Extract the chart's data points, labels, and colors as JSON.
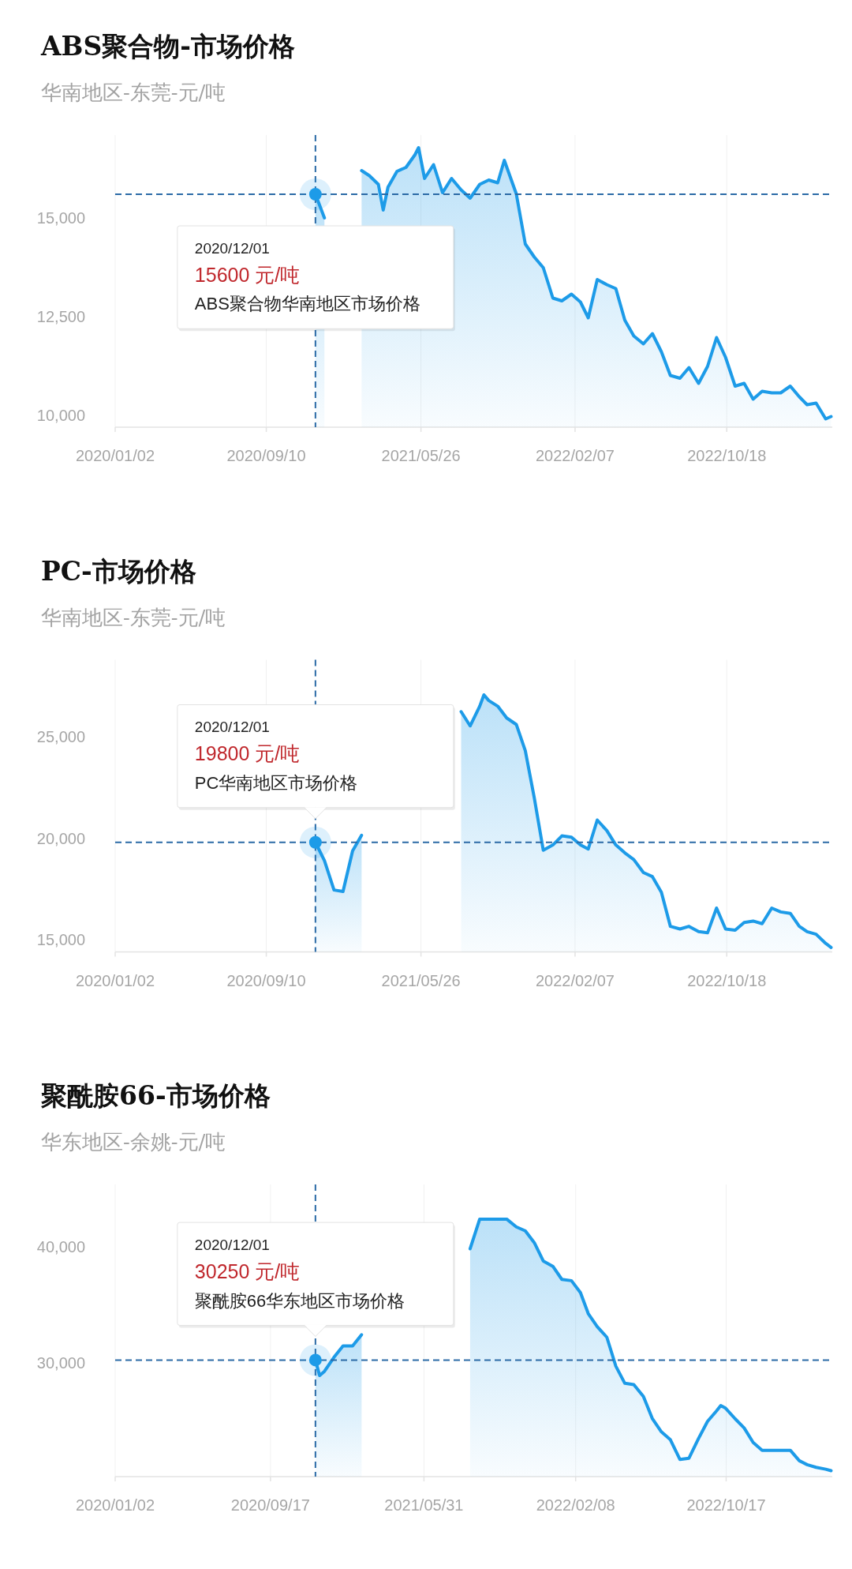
{
  "chart_data": [
    {
      "type": "area",
      "title": "ABS聚合物-市场价格",
      "subtitle": "华南地区-东莞-元/吨",
      "color": "#1d9be8",
      "grid": "x",
      "xlim": [
        "2020-01-02",
        "2023-04-12"
      ],
      "ylim": [
        9700,
        17100
      ],
      "xticks": [
        {
          "value": "2020-01-02",
          "label": "2020/01/02"
        },
        {
          "value": "2020-09-10",
          "label": "2020/09/10"
        },
        {
          "value": "2021-05-26",
          "label": "2021/05/26"
        },
        {
          "value": "2022-02-07",
          "label": "2022/02/07"
        },
        {
          "value": "2022-10-18",
          "label": "2022/10/18"
        }
      ],
      "yticks": [
        {
          "value": 10000,
          "label": "10,000"
        },
        {
          "value": 12500,
          "label": "12,500"
        },
        {
          "value": 15000,
          "label": "15,000"
        }
      ],
      "x": [
        "2020-12-01",
        "2020-12-16",
        "2021-02-16",
        "2021-03-01",
        "2021-03-16",
        "2021-03-24",
        "2021-04-01",
        "2021-04-16",
        "2021-05-01",
        "2021-05-16",
        "2021-05-22",
        "2021-06-01",
        "2021-06-16",
        "2021-07-01",
        "2021-07-16",
        "2021-08-01",
        "2021-08-16",
        "2021-09-01",
        "2021-09-16",
        "2021-10-01",
        "2021-10-12",
        "2021-11-01",
        "2021-11-16",
        "2021-12-01",
        "2021-12-16",
        "2022-01-01",
        "2022-01-16",
        "2022-02-01",
        "2022-02-16",
        "2022-03-01",
        "2022-03-16",
        "2022-04-01",
        "2022-04-16",
        "2022-05-01",
        "2022-05-16",
        "2022-06-01",
        "2022-06-16",
        "2022-07-01",
        "2022-07-16",
        "2022-08-01",
        "2022-08-16",
        "2022-09-01",
        "2022-09-16",
        "2022-10-01",
        "2022-10-16",
        "2022-11-01",
        "2022-11-16",
        "2022-12-01",
        "2022-12-16",
        "2023-01-01",
        "2023-01-16",
        "2023-02-01",
        "2023-02-16",
        "2023-03-01",
        "2023-03-16",
        "2023-04-01",
        "2023-04-10"
      ],
      "values": [
        15600,
        15000,
        16200,
        16070,
        15850,
        15200,
        15780,
        16180,
        16280,
        16600,
        16780,
        16000,
        16350,
        15640,
        16000,
        15710,
        15500,
        15850,
        15960,
        15890,
        16460,
        15610,
        14340,
        14010,
        13740,
        12970,
        12900,
        13070,
        12870,
        12470,
        13440,
        13310,
        13210,
        12410,
        12010,
        11810,
        12070,
        11610,
        11010,
        10940,
        11210,
        10810,
        11240,
        11970,
        11470,
        10740,
        10810,
        10410,
        10610,
        10570,
        10570,
        10740,
        10470,
        10270,
        10310,
        9910,
        9970
      ],
      "ref_lines": [
        {
          "axis": "x",
          "value": "2020-12-01",
          "color": "#2b6aa6",
          "line_style": "dashed"
        },
        {
          "axis": "y",
          "value": 15600,
          "color": "#2b6aa6",
          "line_style": "dashed"
        }
      ],
      "annotations": [
        "2020/12/01",
        "15600 元/吨",
        "ABS聚合物华南地区市场价格"
      ]
    },
    {
      "type": "area",
      "title": "PC-市场价格",
      "subtitle": "华南地区-东莞-元/吨",
      "color": "#1d9be8",
      "grid": "x",
      "xlim": [
        "2020-01-02",
        "2023-04-12"
      ],
      "ylim": [
        14400,
        28800
      ],
      "xticks": [
        {
          "value": "2020-01-02",
          "label": "2020/01/02"
        },
        {
          "value": "2020-09-10",
          "label": "2020/09/10"
        },
        {
          "value": "2021-05-26",
          "label": "2021/05/26"
        },
        {
          "value": "2022-02-07",
          "label": "2022/02/07"
        },
        {
          "value": "2022-10-18",
          "label": "2022/10/18"
        }
      ],
      "yticks": [
        {
          "value": 15000,
          "label": "15,000"
        },
        {
          "value": 20000,
          "label": "20,000"
        },
        {
          "value": 25000,
          "label": "25,000"
        }
      ],
      "x": [
        "2020-12-01",
        "2020-12-16",
        "2021-01-01",
        "2021-01-16",
        "2021-02-01",
        "2021-02-16",
        "2021-08-01",
        "2021-08-16",
        "2021-09-01",
        "2021-09-08",
        "2021-09-16",
        "2021-10-01",
        "2021-10-16",
        "2021-11-01",
        "2021-11-16",
        "2021-12-01",
        "2021-12-16",
        "2022-01-01",
        "2022-01-16",
        "2022-02-01",
        "2022-02-16",
        "2022-03-01",
        "2022-03-16",
        "2022-04-01",
        "2022-04-16",
        "2022-05-01",
        "2022-05-16",
        "2022-06-01",
        "2022-06-16",
        "2022-07-01",
        "2022-07-16",
        "2022-08-01",
        "2022-08-16",
        "2022-09-01",
        "2022-09-16",
        "2022-10-01",
        "2022-10-16",
        "2022-11-01",
        "2022-11-16",
        "2022-12-01",
        "2022-12-16",
        "2023-01-01",
        "2023-01-16",
        "2023-02-01",
        "2023-02-16",
        "2023-03-01",
        "2023-03-16",
        "2023-04-01",
        "2023-04-10"
      ],
      "values": [
        19800,
        18900,
        17450,
        17380,
        19380,
        20150,
        26240,
        25540,
        26510,
        27070,
        26790,
        26510,
        25930,
        25610,
        24320,
        21990,
        19410,
        19670,
        20120,
        20050,
        19670,
        19470,
        20900,
        20380,
        19670,
        19280,
        18950,
        18310,
        18110,
        17340,
        15660,
        15530,
        15660,
        15400,
        15340,
        16560,
        15530,
        15470,
        15850,
        15920,
        15790,
        16560,
        16370,
        16300,
        15660,
        15400,
        15270,
        14820,
        14620
      ],
      "ref_lines": [
        {
          "axis": "x",
          "value": "2020-12-01",
          "color": "#2b6aa6",
          "line_style": "dashed"
        },
        {
          "axis": "y",
          "value": 19800,
          "color": "#2b6aa6",
          "line_style": "dashed"
        }
      ],
      "annotations": [
        "2020/12/01",
        "19800 元/吨",
        "PC华南地区市场价格"
      ]
    },
    {
      "type": "area",
      "title": "聚酰胺66-市场价格",
      "subtitle": "华东地区-余姚-元/吨",
      "color": "#1d9be8",
      "grid": "x",
      "xlim": [
        "2020-01-02",
        "2023-04-12"
      ],
      "ylim": [
        20200,
        45400
      ],
      "xticks": [
        {
          "value": "2020-01-02",
          "label": "2020/01/02"
        },
        {
          "value": "2020-09-17",
          "label": "2020/09/17"
        },
        {
          "value": "2021-05-31",
          "label": "2021/05/31"
        },
        {
          "value": "2022-02-08",
          "label": "2022/02/08"
        },
        {
          "value": "2022-10-17",
          "label": "2022/10/17"
        }
      ],
      "yticks": [
        {
          "value": 30000,
          "label": "30,000"
        },
        {
          "value": 40000,
          "label": "40,000"
        }
      ],
      "x": [
        "2020-12-01",
        "2020-12-08",
        "2020-12-16",
        "2021-01-01",
        "2021-01-16",
        "2021-02-01",
        "2021-02-16",
        "2021-08-16",
        "2021-09-01",
        "2021-09-16",
        "2021-10-01",
        "2021-10-16",
        "2021-11-01",
        "2021-11-16",
        "2021-12-01",
        "2021-12-16",
        "2022-01-01",
        "2022-01-16",
        "2022-02-01",
        "2022-02-16",
        "2022-03-01",
        "2022-03-16",
        "2022-04-01",
        "2022-04-16",
        "2022-05-01",
        "2022-05-16",
        "2022-06-01",
        "2022-06-16",
        "2022-07-01",
        "2022-07-16",
        "2022-08-01",
        "2022-08-16",
        "2022-09-01",
        "2022-09-16",
        "2022-10-01",
        "2022-10-08",
        "2022-10-16",
        "2022-11-01",
        "2022-11-16",
        "2022-12-01",
        "2022-12-16",
        "2023-01-01",
        "2023-01-16",
        "2023-02-01",
        "2023-02-16",
        "2023-03-01",
        "2023-03-16",
        "2023-04-01",
        "2023-04-10"
      ],
      "values": [
        30250,
        28920,
        29280,
        30500,
        31470,
        31470,
        32440,
        39850,
        42410,
        42410,
        42410,
        42410,
        41740,
        41400,
        40380,
        38800,
        38340,
        37210,
        37100,
        36070,
        34260,
        33130,
        32220,
        29730,
        28250,
        28140,
        27120,
        25190,
        24060,
        23380,
        21680,
        21790,
        23490,
        24970,
        25870,
        26330,
        26100,
        25190,
        24400,
        23150,
        22470,
        22470,
        22470,
        22470,
        21570,
        21230,
        21000,
        20840,
        20710
      ],
      "ref_lines": [
        {
          "axis": "x",
          "value": "2020-12-01",
          "color": "#2b6aa6",
          "line_style": "dashed"
        },
        {
          "axis": "y",
          "value": 30250,
          "color": "#2b6aa6",
          "line_style": "dashed"
        }
      ],
      "annotations": [
        "2020/12/01",
        "30250 元/吨",
        "聚酰胺66华东地区市场价格"
      ]
    }
  ]
}
